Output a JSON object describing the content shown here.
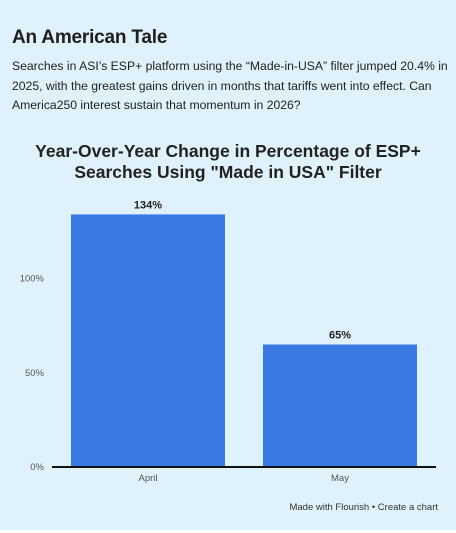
{
  "article": {
    "headline": "An American Tale",
    "intro": "Searches in ASI’s ESP+ platform using the “Made-in-USA” filter jumped 20.4% in 2025, with the greatest gains driven in months that tariffs went into effect. Can America250 interest sustain that momentum in 2026?"
  },
  "chart_data": {
    "type": "bar",
    "title": "Year-Over-Year Change in Percentage of ESP+ Searches Using \"Made in USA\" Filter",
    "categories": [
      "April",
      "May"
    ],
    "values": [
      134,
      65
    ],
    "data_labels": [
      "134%",
      "65%"
    ],
    "y_ticks": [
      0,
      50,
      100
    ],
    "y_tick_labels": [
      "0%",
      "50%",
      "100%"
    ],
    "ylim": [
      0,
      145
    ],
    "xlabel": "",
    "ylabel": "",
    "grid": false,
    "legend": "none",
    "bar_color": "#3a78e3"
  },
  "footer": {
    "credit": "Made with Flourish • Create a chart"
  },
  "colors": {
    "background": "#dff1fb",
    "bar": "#3a78e3",
    "text": "#222222"
  }
}
